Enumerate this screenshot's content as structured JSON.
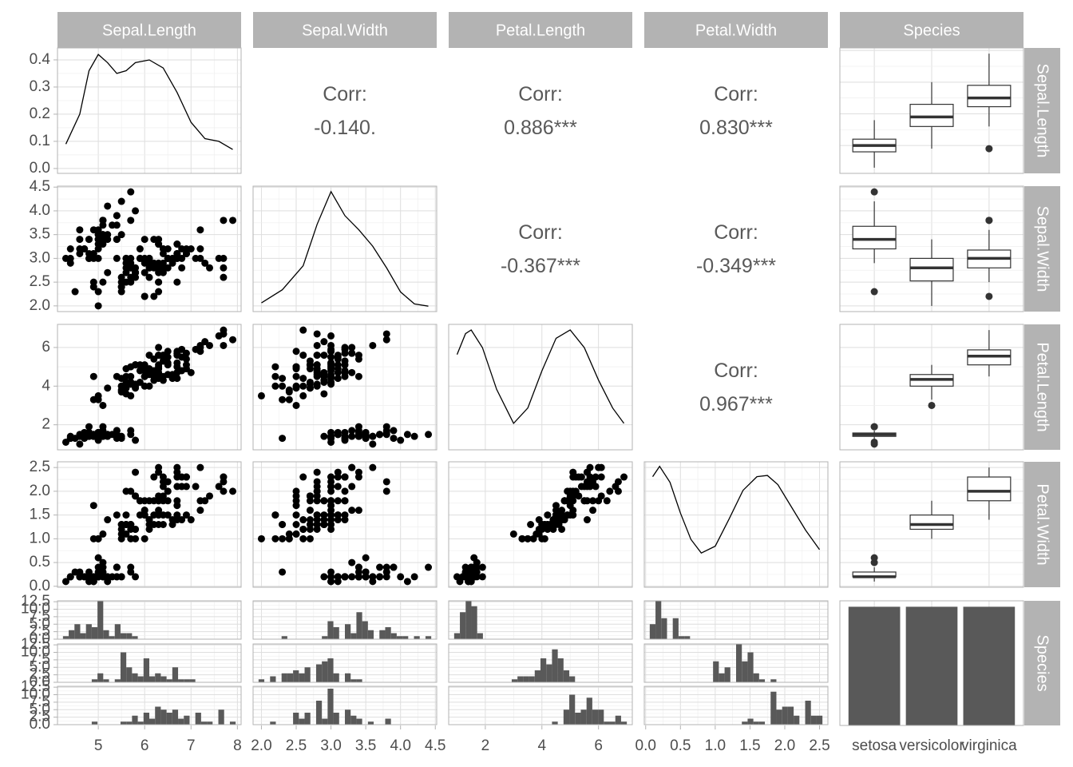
{
  "chart_data": {
    "type": "pairs",
    "variables": [
      "Sepal.Length",
      "Sepal.Width",
      "Petal.Length",
      "Petal.Width",
      "Species"
    ],
    "species": [
      "setosa",
      "versicolor",
      "virginica"
    ],
    "axes": [
      {
        "lim": [
          4.12,
          8.08
        ],
        "ticks": [
          5,
          6,
          7,
          8
        ]
      },
      {
        "lim": [
          1.88,
          4.52
        ],
        "ticks": [
          {
            "value": 2,
            "label": "2.0"
          },
          2.5,
          {
            "value": 3,
            "label": "3.0"
          },
          3.5,
          {
            "value": 4,
            "label": "4.0"
          },
          4.5
        ]
      },
      {
        "lim": [
          0.705,
          7.195
        ],
        "ticks": [
          2,
          4,
          6
        ]
      },
      {
        "lim": [
          -0.02,
          2.62
        ],
        "ticks": [
          {
            "value": 0,
            "label": "0.0"
          },
          0.5,
          {
            "value": 1,
            "label": "1.0"
          },
          1.5,
          {
            "value": 2,
            "label": "2.0"
          },
          2.5
        ]
      }
    ],
    "density_yticks": [
      {
        "value": 0,
        "label": "0.0"
      },
      0.1,
      0.2,
      0.3,
      0.4
    ],
    "densities": [
      {
        "ylim": [
          -0.018,
          0.444
        ],
        "x": [
          4.3,
          4.6,
          4.8,
          5.0,
          5.2,
          5.4,
          5.6,
          5.8,
          6.1,
          6.4,
          6.7,
          7.0,
          7.3,
          7.6,
          7.9
        ],
        "y": [
          0.09,
          0.2,
          0.36,
          0.42,
          0.39,
          0.35,
          0.36,
          0.39,
          0.4,
          0.37,
          0.28,
          0.17,
          0.11,
          0.1,
          0.07
        ]
      },
      {
        "ylim": [
          0,
          1.15
        ],
        "x": [
          2.0,
          2.3,
          2.6,
          2.8,
          3.0,
          3.2,
          3.4,
          3.6,
          3.8,
          4.0,
          4.2,
          4.4
        ],
        "y": [
          0.08,
          0.2,
          0.42,
          0.8,
          1.1,
          0.88,
          0.75,
          0.6,
          0.4,
          0.18,
          0.07,
          0.05
        ]
      },
      {
        "ylim": [
          0,
          0.27
        ],
        "x": [
          1.0,
          1.3,
          1.5,
          1.9,
          2.4,
          3.0,
          3.5,
          4.0,
          4.5,
          5.0,
          5.5,
          6.0,
          6.5,
          6.9
        ],
        "y": [
          0.205,
          0.25,
          0.258,
          0.22,
          0.13,
          0.057,
          0.09,
          0.17,
          0.24,
          0.258,
          0.22,
          0.15,
          0.09,
          0.057
        ]
      },
      {
        "ylim": [
          0,
          1.1
        ],
        "x": [
          0.1,
          0.2,
          0.35,
          0.5,
          0.65,
          0.8,
          1.0,
          1.2,
          1.4,
          1.6,
          1.75,
          1.9,
          2.1,
          2.3,
          2.5
        ],
        "y": [
          0.97,
          1.06,
          0.92,
          0.65,
          0.42,
          0.3,
          0.36,
          0.6,
          0.85,
          0.97,
          0.98,
          0.9,
          0.7,
          0.5,
          0.33
        ]
      }
    ],
    "correlations": [
      {
        "pair": [
          "Sepal.Length",
          "Sepal.Width"
        ],
        "label": "Corr:",
        "value": -0.14,
        "value_label": "-0.140."
      },
      {
        "pair": [
          "Sepal.Length",
          "Petal.Length"
        ],
        "label": "Corr:",
        "value": 0.886,
        "value_label": "0.886***"
      },
      {
        "pair": [
          "Sepal.Length",
          "Petal.Width"
        ],
        "label": "Corr:",
        "value": 0.83,
        "value_label": "0.830***"
      },
      {
        "pair": [
          "Sepal.Width",
          "Petal.Length"
        ],
        "label": "Corr:",
        "value": -0.367,
        "value_label": "-0.367***"
      },
      {
        "pair": [
          "Sepal.Width",
          "Petal.Width"
        ],
        "label": "Corr:",
        "value": -0.349,
        "value_label": "-0.349***"
      },
      {
        "pair": [
          "Petal.Length",
          "Petal.Width"
        ],
        "label": "Corr:",
        "value": 0.967,
        "value_label": "0.967***"
      }
    ],
    "hist_ylim": [
      0,
      12.8
    ],
    "hist_yticks": [
      {
        "value": 0,
        "label": "0.0"
      },
      2.5,
      {
        "value": 5,
        "label": "5.0"
      },
      7.5,
      {
        "value": 10,
        "label": "10.0"
      },
      12.5
    ],
    "bar_ylim": [
      0,
      52.5
    ],
    "rows": [
      [
        5.1,
        3.5,
        1.4,
        0.2,
        "setosa"
      ],
      [
        4.9,
        3.0,
        1.4,
        0.2,
        "setosa"
      ],
      [
        4.7,
        3.2,
        1.3,
        0.2,
        "setosa"
      ],
      [
        4.6,
        3.1,
        1.5,
        0.2,
        "setosa"
      ],
      [
        5.0,
        3.6,
        1.4,
        0.2,
        "setosa"
      ],
      [
        5.4,
        3.9,
        1.7,
        0.4,
        "setosa"
      ],
      [
        4.6,
        3.4,
        1.4,
        0.3,
        "setosa"
      ],
      [
        5.0,
        3.4,
        1.5,
        0.2,
        "setosa"
      ],
      [
        4.4,
        2.9,
        1.4,
        0.2,
        "setosa"
      ],
      [
        4.9,
        3.1,
        1.5,
        0.1,
        "setosa"
      ],
      [
        5.4,
        3.7,
        1.5,
        0.2,
        "setosa"
      ],
      [
        4.8,
        3.4,
        1.6,
        0.2,
        "setosa"
      ],
      [
        4.8,
        3.0,
        1.4,
        0.1,
        "setosa"
      ],
      [
        4.3,
        3.0,
        1.1,
        0.1,
        "setosa"
      ],
      [
        5.8,
        4.0,
        1.2,
        0.2,
        "setosa"
      ],
      [
        5.7,
        4.4,
        1.5,
        0.4,
        "setosa"
      ],
      [
        5.4,
        3.9,
        1.3,
        0.4,
        "setosa"
      ],
      [
        5.1,
        3.5,
        1.4,
        0.3,
        "setosa"
      ],
      [
        5.7,
        3.8,
        1.7,
        0.3,
        "setosa"
      ],
      [
        5.1,
        3.8,
        1.5,
        0.3,
        "setosa"
      ],
      [
        5.4,
        3.4,
        1.7,
        0.2,
        "setosa"
      ],
      [
        5.1,
        3.7,
        1.5,
        0.4,
        "setosa"
      ],
      [
        4.6,
        3.6,
        1.0,
        0.2,
        "setosa"
      ],
      [
        5.1,
        3.3,
        1.7,
        0.5,
        "setosa"
      ],
      [
        4.8,
        3.4,
        1.9,
        0.2,
        "setosa"
      ],
      [
        5.0,
        3.0,
        1.6,
        0.2,
        "setosa"
      ],
      [
        5.0,
        3.4,
        1.6,
        0.4,
        "setosa"
      ],
      [
        5.2,
        3.5,
        1.5,
        0.2,
        "setosa"
      ],
      [
        5.2,
        3.4,
        1.4,
        0.2,
        "setosa"
      ],
      [
        4.7,
        3.2,
        1.6,
        0.2,
        "setosa"
      ],
      [
        4.8,
        3.1,
        1.6,
        0.2,
        "setosa"
      ],
      [
        5.4,
        3.4,
        1.5,
        0.4,
        "setosa"
      ],
      [
        5.2,
        4.1,
        1.5,
        0.1,
        "setosa"
      ],
      [
        5.5,
        4.2,
        1.4,
        0.2,
        "setosa"
      ],
      [
        4.9,
        3.1,
        1.5,
        0.2,
        "setosa"
      ],
      [
        5.0,
        3.2,
        1.2,
        0.2,
        "setosa"
      ],
      [
        5.5,
        3.5,
        1.3,
        0.2,
        "setosa"
      ],
      [
        4.9,
        3.6,
        1.4,
        0.1,
        "setosa"
      ],
      [
        4.4,
        3.0,
        1.3,
        0.2,
        "setosa"
      ],
      [
        5.1,
        3.4,
        1.5,
        0.2,
        "setosa"
      ],
      [
        5.0,
        3.5,
        1.3,
        0.3,
        "setosa"
      ],
      [
        4.5,
        2.3,
        1.3,
        0.3,
        "setosa"
      ],
      [
        4.4,
        3.2,
        1.3,
        0.2,
        "setosa"
      ],
      [
        5.0,
        3.5,
        1.6,
        0.6,
        "setosa"
      ],
      [
        5.1,
        3.8,
        1.9,
        0.4,
        "setosa"
      ],
      [
        4.8,
        3.0,
        1.4,
        0.3,
        "setosa"
      ],
      [
        5.1,
        3.8,
        1.6,
        0.2,
        "setosa"
      ],
      [
        4.6,
        3.2,
        1.4,
        0.2,
        "setosa"
      ],
      [
        5.3,
        3.7,
        1.5,
        0.2,
        "setosa"
      ],
      [
        5.0,
        3.3,
        1.4,
        0.2,
        "setosa"
      ],
      [
        7.0,
        3.2,
        4.7,
        1.4,
        "versicolor"
      ],
      [
        6.4,
        3.2,
        4.5,
        1.5,
        "versicolor"
      ],
      [
        6.9,
        3.1,
        4.9,
        1.5,
        "versicolor"
      ],
      [
        5.5,
        2.3,
        4.0,
        1.3,
        "versicolor"
      ],
      [
        6.5,
        2.8,
        4.6,
        1.5,
        "versicolor"
      ],
      [
        5.7,
        2.8,
        4.5,
        1.3,
        "versicolor"
      ],
      [
        6.3,
        3.3,
        4.7,
        1.6,
        "versicolor"
      ],
      [
        4.9,
        2.4,
        3.3,
        1.0,
        "versicolor"
      ],
      [
        6.6,
        2.9,
        4.6,
        1.3,
        "versicolor"
      ],
      [
        5.2,
        2.7,
        3.9,
        1.4,
        "versicolor"
      ],
      [
        5.0,
        2.0,
        3.5,
        1.0,
        "versicolor"
      ],
      [
        5.9,
        3.0,
        4.2,
        1.5,
        "versicolor"
      ],
      [
        6.0,
        2.2,
        4.0,
        1.0,
        "versicolor"
      ],
      [
        6.1,
        2.9,
        4.7,
        1.4,
        "versicolor"
      ],
      [
        5.6,
        2.9,
        3.6,
        1.3,
        "versicolor"
      ],
      [
        6.7,
        3.1,
        4.4,
        1.4,
        "versicolor"
      ],
      [
        5.6,
        3.0,
        4.5,
        1.5,
        "versicolor"
      ],
      [
        5.8,
        2.7,
        4.1,
        1.0,
        "versicolor"
      ],
      [
        6.2,
        2.2,
        4.5,
        1.5,
        "versicolor"
      ],
      [
        5.6,
        2.5,
        3.9,
        1.1,
        "versicolor"
      ],
      [
        5.9,
        3.2,
        4.8,
        1.8,
        "versicolor"
      ],
      [
        6.1,
        2.8,
        4.0,
        1.3,
        "versicolor"
      ],
      [
        6.3,
        2.5,
        4.9,
        1.5,
        "versicolor"
      ],
      [
        6.1,
        2.8,
        4.7,
        1.2,
        "versicolor"
      ],
      [
        6.4,
        2.9,
        4.3,
        1.3,
        "versicolor"
      ],
      [
        6.6,
        3.0,
        4.4,
        1.4,
        "versicolor"
      ],
      [
        6.8,
        2.8,
        4.8,
        1.4,
        "versicolor"
      ],
      [
        6.7,
        3.0,
        5.0,
        1.7,
        "versicolor"
      ],
      [
        6.0,
        2.9,
        4.5,
        1.5,
        "versicolor"
      ],
      [
        5.7,
        2.6,
        3.5,
        1.0,
        "versicolor"
      ],
      [
        5.5,
        2.4,
        3.8,
        1.1,
        "versicolor"
      ],
      [
        5.5,
        2.4,
        3.7,
        1.0,
        "versicolor"
      ],
      [
        5.8,
        2.7,
        3.9,
        1.2,
        "versicolor"
      ],
      [
        6.0,
        2.7,
        5.1,
        1.6,
        "versicolor"
      ],
      [
        5.4,
        3.0,
        4.5,
        1.5,
        "versicolor"
      ],
      [
        6.0,
        3.4,
        4.5,
        1.6,
        "versicolor"
      ],
      [
        6.7,
        3.1,
        4.7,
        1.5,
        "versicolor"
      ],
      [
        6.3,
        2.3,
        4.4,
        1.3,
        "versicolor"
      ],
      [
        5.6,
        3.0,
        4.1,
        1.3,
        "versicolor"
      ],
      [
        5.5,
        2.5,
        4.0,
        1.3,
        "versicolor"
      ],
      [
        5.5,
        2.6,
        4.4,
        1.2,
        "versicolor"
      ],
      [
        6.1,
        3.0,
        4.6,
        1.4,
        "versicolor"
      ],
      [
        5.8,
        2.6,
        4.0,
        1.2,
        "versicolor"
      ],
      [
        5.0,
        2.3,
        3.3,
        1.0,
        "versicolor"
      ],
      [
        5.6,
        2.7,
        4.2,
        1.3,
        "versicolor"
      ],
      [
        5.7,
        3.0,
        4.2,
        1.2,
        "versicolor"
      ],
      [
        5.7,
        2.9,
        4.2,
        1.3,
        "versicolor"
      ],
      [
        6.2,
        2.9,
        4.3,
        1.3,
        "versicolor"
      ],
      [
        5.1,
        2.5,
        3.0,
        1.1,
        "versicolor"
      ],
      [
        5.7,
        2.8,
        4.1,
        1.3,
        "versicolor"
      ],
      [
        6.3,
        3.3,
        6.0,
        2.5,
        "virginica"
      ],
      [
        5.8,
        2.7,
        5.1,
        1.9,
        "virginica"
      ],
      [
        7.1,
        3.0,
        5.9,
        2.1,
        "virginica"
      ],
      [
        6.3,
        2.9,
        5.6,
        1.8,
        "virginica"
      ],
      [
        6.5,
        3.0,
        5.8,
        2.2,
        "virginica"
      ],
      [
        7.6,
        3.0,
        6.6,
        2.1,
        "virginica"
      ],
      [
        4.9,
        2.5,
        4.5,
        1.7,
        "virginica"
      ],
      [
        7.3,
        2.9,
        6.3,
        1.8,
        "virginica"
      ],
      [
        6.7,
        2.5,
        5.8,
        1.8,
        "virginica"
      ],
      [
        7.2,
        3.6,
        6.1,
        2.5,
        "virginica"
      ],
      [
        6.5,
        3.2,
        5.1,
        2.0,
        "virginica"
      ],
      [
        6.4,
        2.7,
        5.3,
        1.9,
        "virginica"
      ],
      [
        6.8,
        3.0,
        5.5,
        2.1,
        "virginica"
      ],
      [
        5.7,
        2.5,
        5.0,
        2.0,
        "virginica"
      ],
      [
        5.8,
        2.8,
        5.1,
        2.4,
        "virginica"
      ],
      [
        6.4,
        3.2,
        5.3,
        2.3,
        "virginica"
      ],
      [
        6.5,
        3.0,
        5.5,
        1.8,
        "virginica"
      ],
      [
        7.7,
        3.8,
        6.7,
        2.2,
        "virginica"
      ],
      [
        7.7,
        2.6,
        6.9,
        2.3,
        "virginica"
      ],
      [
        6.0,
        2.2,
        5.0,
        1.5,
        "virginica"
      ],
      [
        6.9,
        3.2,
        5.7,
        2.3,
        "virginica"
      ],
      [
        5.6,
        2.8,
        4.9,
        2.0,
        "virginica"
      ],
      [
        7.7,
        2.8,
        6.7,
        2.0,
        "virginica"
      ],
      [
        6.3,
        2.7,
        4.9,
        1.8,
        "virginica"
      ],
      [
        6.7,
        3.3,
        5.7,
        2.1,
        "virginica"
      ],
      [
        7.2,
        3.2,
        6.0,
        1.8,
        "virginica"
      ],
      [
        6.2,
        2.8,
        4.8,
        1.8,
        "virginica"
      ],
      [
        6.1,
        3.0,
        4.9,
        1.8,
        "virginica"
      ],
      [
        6.4,
        2.8,
        5.6,
        2.1,
        "virginica"
      ],
      [
        7.2,
        3.0,
        5.8,
        1.6,
        "virginica"
      ],
      [
        7.4,
        2.8,
        6.1,
        1.9,
        "virginica"
      ],
      [
        7.9,
        3.8,
        6.4,
        2.0,
        "virginica"
      ],
      [
        6.4,
        2.8,
        5.6,
        2.2,
        "virginica"
      ],
      [
        6.3,
        2.8,
        5.1,
        1.5,
        "virginica"
      ],
      [
        6.1,
        2.6,
        5.6,
        1.4,
        "virginica"
      ],
      [
        7.7,
        3.0,
        6.1,
        2.3,
        "virginica"
      ],
      [
        6.3,
        3.4,
        5.6,
        2.4,
        "virginica"
      ],
      [
        6.4,
        3.1,
        5.5,
        1.8,
        "virginica"
      ],
      [
        6.0,
        3.0,
        4.8,
        1.8,
        "virginica"
      ],
      [
        6.9,
        3.1,
        5.4,
        2.1,
        "virginica"
      ],
      [
        6.7,
        3.1,
        5.6,
        2.4,
        "virginica"
      ],
      [
        6.9,
        3.1,
        5.1,
        2.3,
        "virginica"
      ],
      [
        5.8,
        2.7,
        5.1,
        1.9,
        "virginica"
      ],
      [
        6.8,
        3.2,
        5.9,
        2.3,
        "virginica"
      ],
      [
        6.7,
        3.3,
        5.7,
        2.5,
        "virginica"
      ],
      [
        6.7,
        3.0,
        5.2,
        2.3,
        "virginica"
      ],
      [
        6.3,
        2.5,
        5.0,
        1.9,
        "virginica"
      ],
      [
        6.5,
        3.0,
        5.2,
        2.0,
        "virginica"
      ],
      [
        6.2,
        3.4,
        5.4,
        2.3,
        "virginica"
      ],
      [
        5.9,
        3.0,
        5.1,
        1.8,
        "virginica"
      ]
    ]
  }
}
